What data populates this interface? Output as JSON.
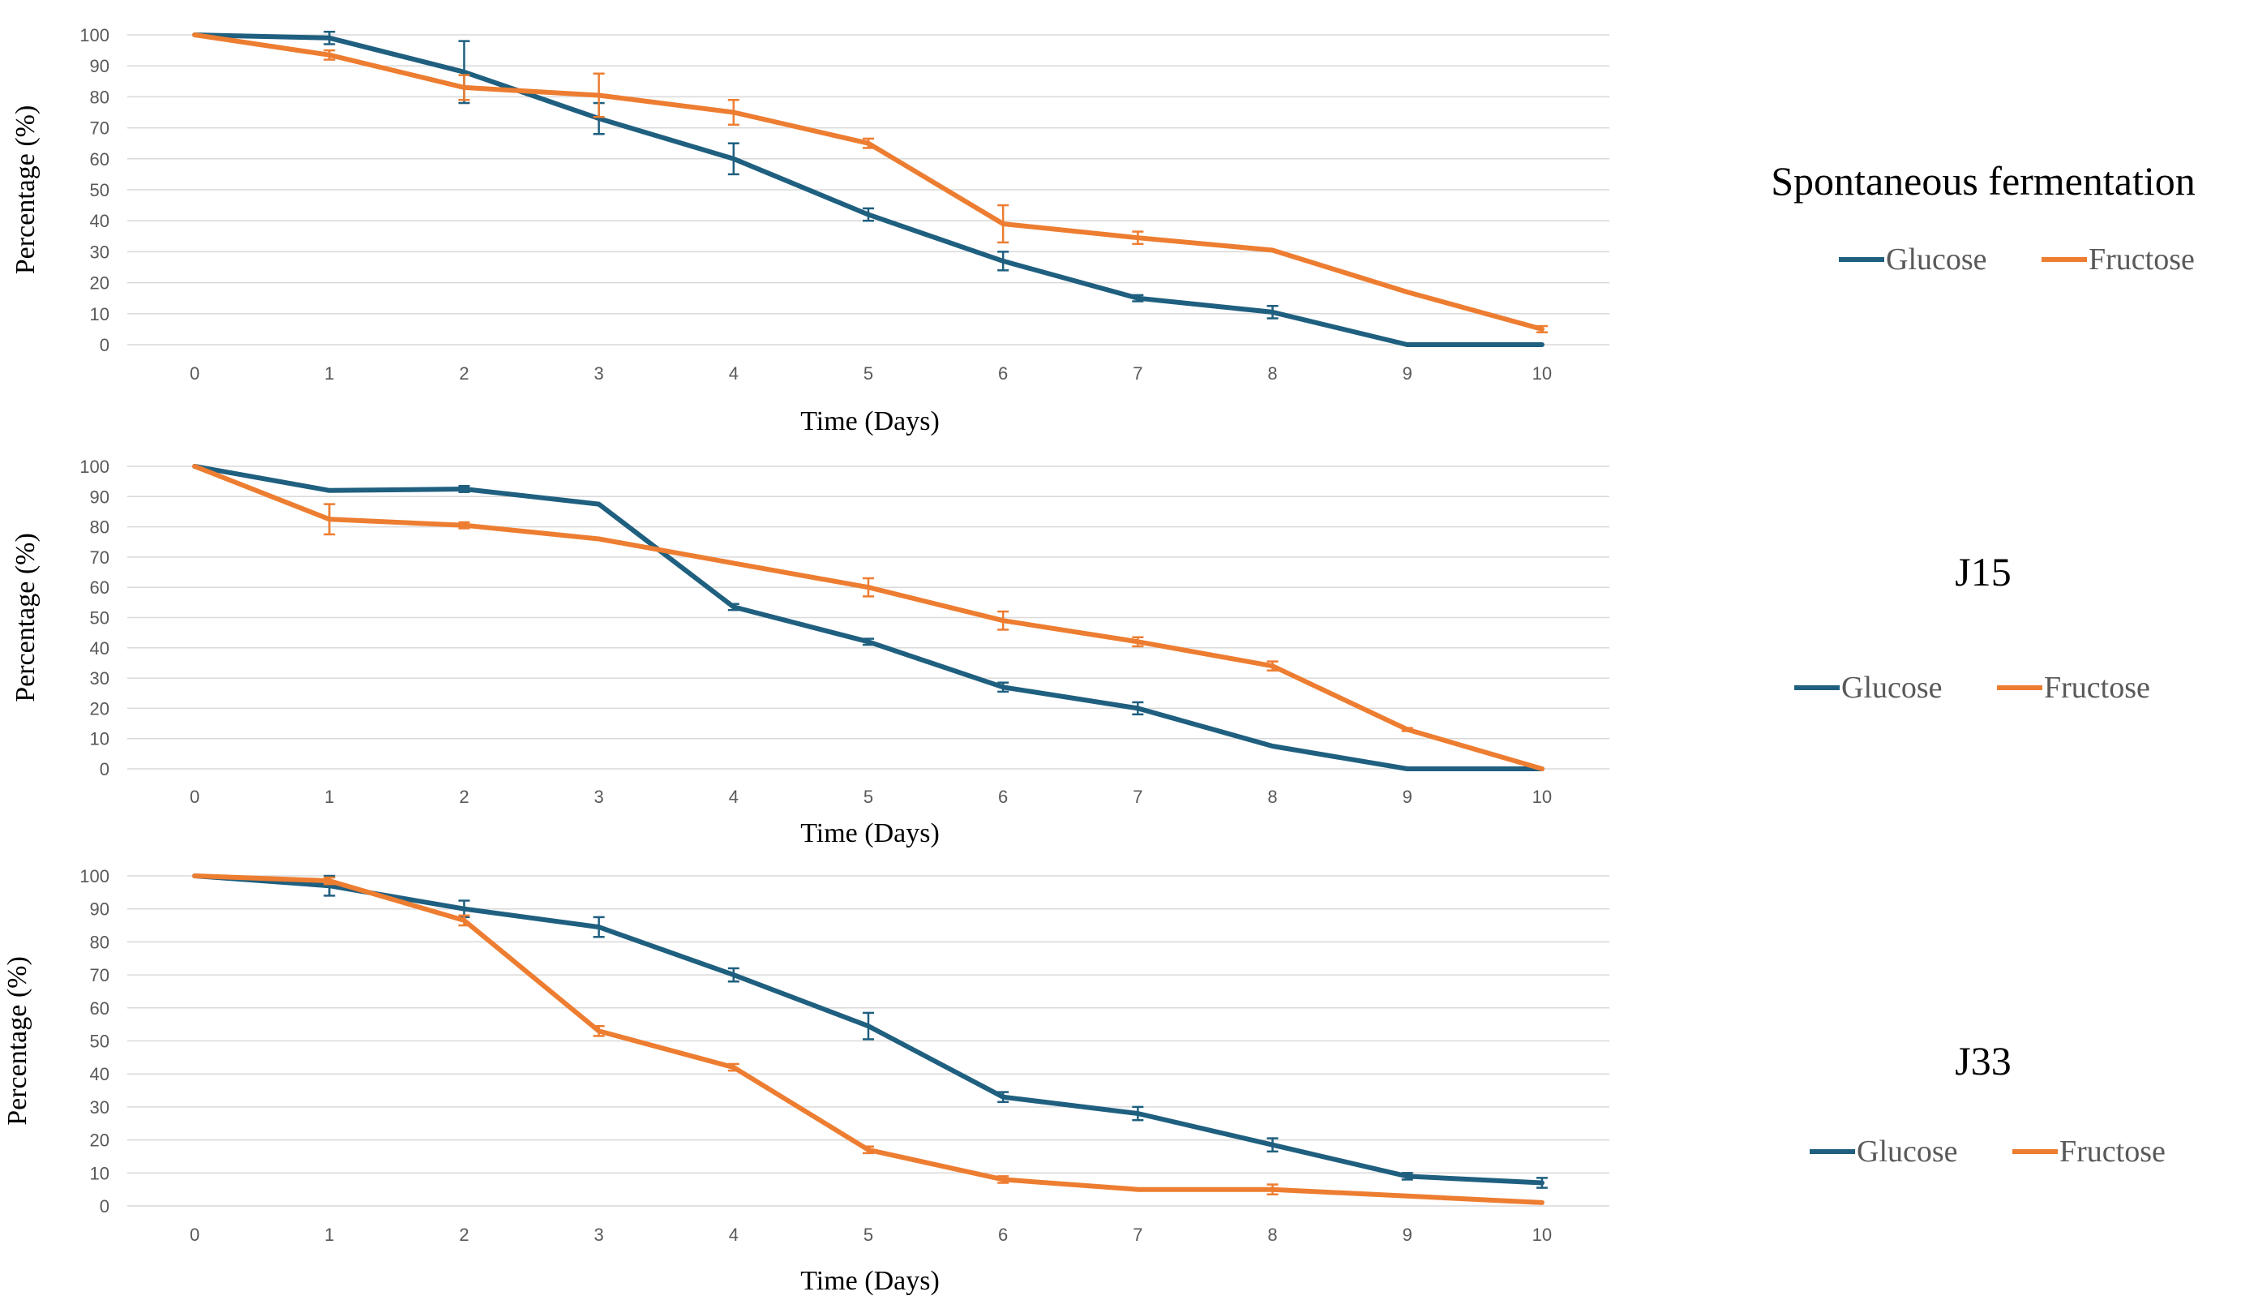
{
  "chart_data": [
    {
      "type": "line",
      "title": "Spontaneous fermentation",
      "xlabel": "Time (Days)",
      "ylabel": "Percentage (%)",
      "ylim": [
        0,
        100
      ],
      "grid": true,
      "legend_position": "right",
      "categories": [
        "0",
        "1",
        "2",
        "3",
        "4",
        "5",
        "6",
        "7",
        "8",
        "9",
        "10"
      ],
      "y_ticks": [
        "0",
        "10",
        "20",
        "30",
        "40",
        "50",
        "60",
        "70",
        "80",
        "90",
        "100"
      ],
      "series": [
        {
          "name": "Glucose",
          "color": "#1f5f7f",
          "values": [
            100,
            99,
            88,
            73,
            60,
            42,
            27,
            15,
            10.5,
            0,
            0
          ],
          "errors": [
            0,
            2,
            10,
            5,
            5,
            2,
            3,
            1,
            2,
            0,
            0
          ]
        },
        {
          "name": "Fructose",
          "color": "#ed7d31",
          "values": [
            100,
            93.5,
            83,
            80.5,
            75,
            65,
            39,
            34.5,
            30.5,
            17,
            5
          ],
          "errors": [
            0,
            1.5,
            4,
            7,
            4,
            1.5,
            6,
            2,
            0,
            0,
            1
          ]
        }
      ]
    },
    {
      "type": "line",
      "title": "J15",
      "xlabel": "Time (Days)",
      "ylabel": "Percentage (%)",
      "ylim": [
        0,
        100
      ],
      "grid": true,
      "legend_position": "right",
      "categories": [
        "0",
        "1",
        "2",
        "3",
        "4",
        "5",
        "6",
        "7",
        "8",
        "9",
        "10"
      ],
      "y_ticks": [
        "0",
        "10",
        "20",
        "30",
        "40",
        "50",
        "60",
        "70",
        "80",
        "90",
        "100"
      ],
      "series": [
        {
          "name": "Glucose",
          "color": "#1f5f7f",
          "values": [
            100,
            92,
            92.5,
            87.5,
            53.5,
            42,
            27,
            20,
            7.5,
            0,
            0
          ],
          "errors": [
            0,
            0,
            1,
            0,
            1,
            1,
            1.5,
            2,
            0,
            0,
            0
          ]
        },
        {
          "name": "Fructose",
          "color": "#ed7d31",
          "values": [
            100,
            82.5,
            80.5,
            76,
            68,
            60,
            49,
            42,
            34,
            13,
            0
          ],
          "errors": [
            0,
            5,
            1,
            0,
            0,
            3,
            3,
            1.5,
            1.5,
            0.5,
            0
          ]
        }
      ]
    },
    {
      "type": "line",
      "title": "J33",
      "xlabel": "Time (Days)",
      "ylabel": "Percentage (%)",
      "ylim": [
        0,
        100
      ],
      "grid": true,
      "legend_position": "right",
      "categories": [
        "0",
        "1",
        "2",
        "3",
        "4",
        "5",
        "6",
        "7",
        "8",
        "9",
        "10"
      ],
      "y_ticks": [
        "0",
        "10",
        "20",
        "30",
        "40",
        "50",
        "60",
        "70",
        "80",
        "90",
        "100"
      ],
      "series": [
        {
          "name": "Glucose",
          "color": "#1f5f7f",
          "values": [
            100,
            97,
            90,
            84.5,
            70,
            54.5,
            33,
            28,
            18.5,
            9,
            7
          ],
          "errors": [
            0,
            3,
            2.5,
            3,
            2,
            4,
            1.5,
            2,
            2,
            1,
            1.5
          ]
        },
        {
          "name": "Fructose",
          "color": "#ed7d31",
          "values": [
            100,
            98.5,
            86.5,
            53,
            42,
            17,
            8,
            5,
            5,
            3,
            1
          ],
          "errors": [
            0,
            1,
            1.5,
            1.5,
            1,
            1,
            1,
            0,
            1.5,
            0,
            0
          ]
        }
      ]
    }
  ]
}
